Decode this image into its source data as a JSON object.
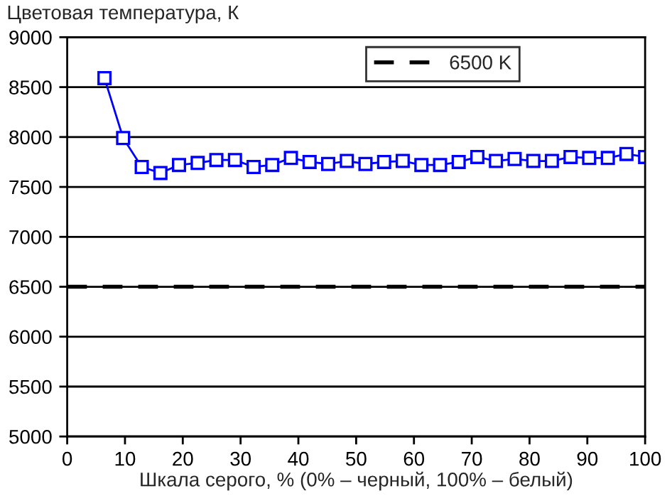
{
  "chart_data": {
    "type": "line",
    "ylabel": "Цветовая температура, К",
    "xlabel": "Шкала серого, % (0% – черный, 100% – белый)",
    "x": [
      6.45,
      9.68,
      12.9,
      16.13,
      19.35,
      22.58,
      25.81,
      29.03,
      32.26,
      35.48,
      38.71,
      41.94,
      45.16,
      48.39,
      51.61,
      54.84,
      58.06,
      61.29,
      64.52,
      67.74,
      70.97,
      74.19,
      77.42,
      80.65,
      83.87,
      87.1,
      90.32,
      93.55,
      96.77,
      100
    ],
    "series": [
      {
        "color": "#0000ff",
        "values": [
          8590,
          7990,
          7700,
          7640,
          7720,
          7740,
          7770,
          7770,
          7700,
          7720,
          7790,
          7750,
          7730,
          7760,
          7730,
          7750,
          7760,
          7720,
          7720,
          7750,
          7800,
          7760,
          7780,
          7760,
          7760,
          7800,
          7790,
          7790,
          7830,
          7800
        ]
      }
    ],
    "ref_lines": [
      {
        "axis": "y",
        "value": 6500,
        "label": "6500 K",
        "color": "#000000",
        "line_style": "dashed"
      }
    ],
    "xlim": [
      0,
      100
    ],
    "xticks": [
      0,
      10,
      20,
      30,
      40,
      50,
      60,
      70,
      80,
      90,
      100
    ],
    "ylim": [
      5000,
      9000
    ],
    "yticks": [
      5000,
      5500,
      6000,
      6500,
      7000,
      7500,
      8000,
      8500,
      9000
    ],
    "grid": "y",
    "legend": "top",
    "marker": "square",
    "line_style": "solid"
  }
}
